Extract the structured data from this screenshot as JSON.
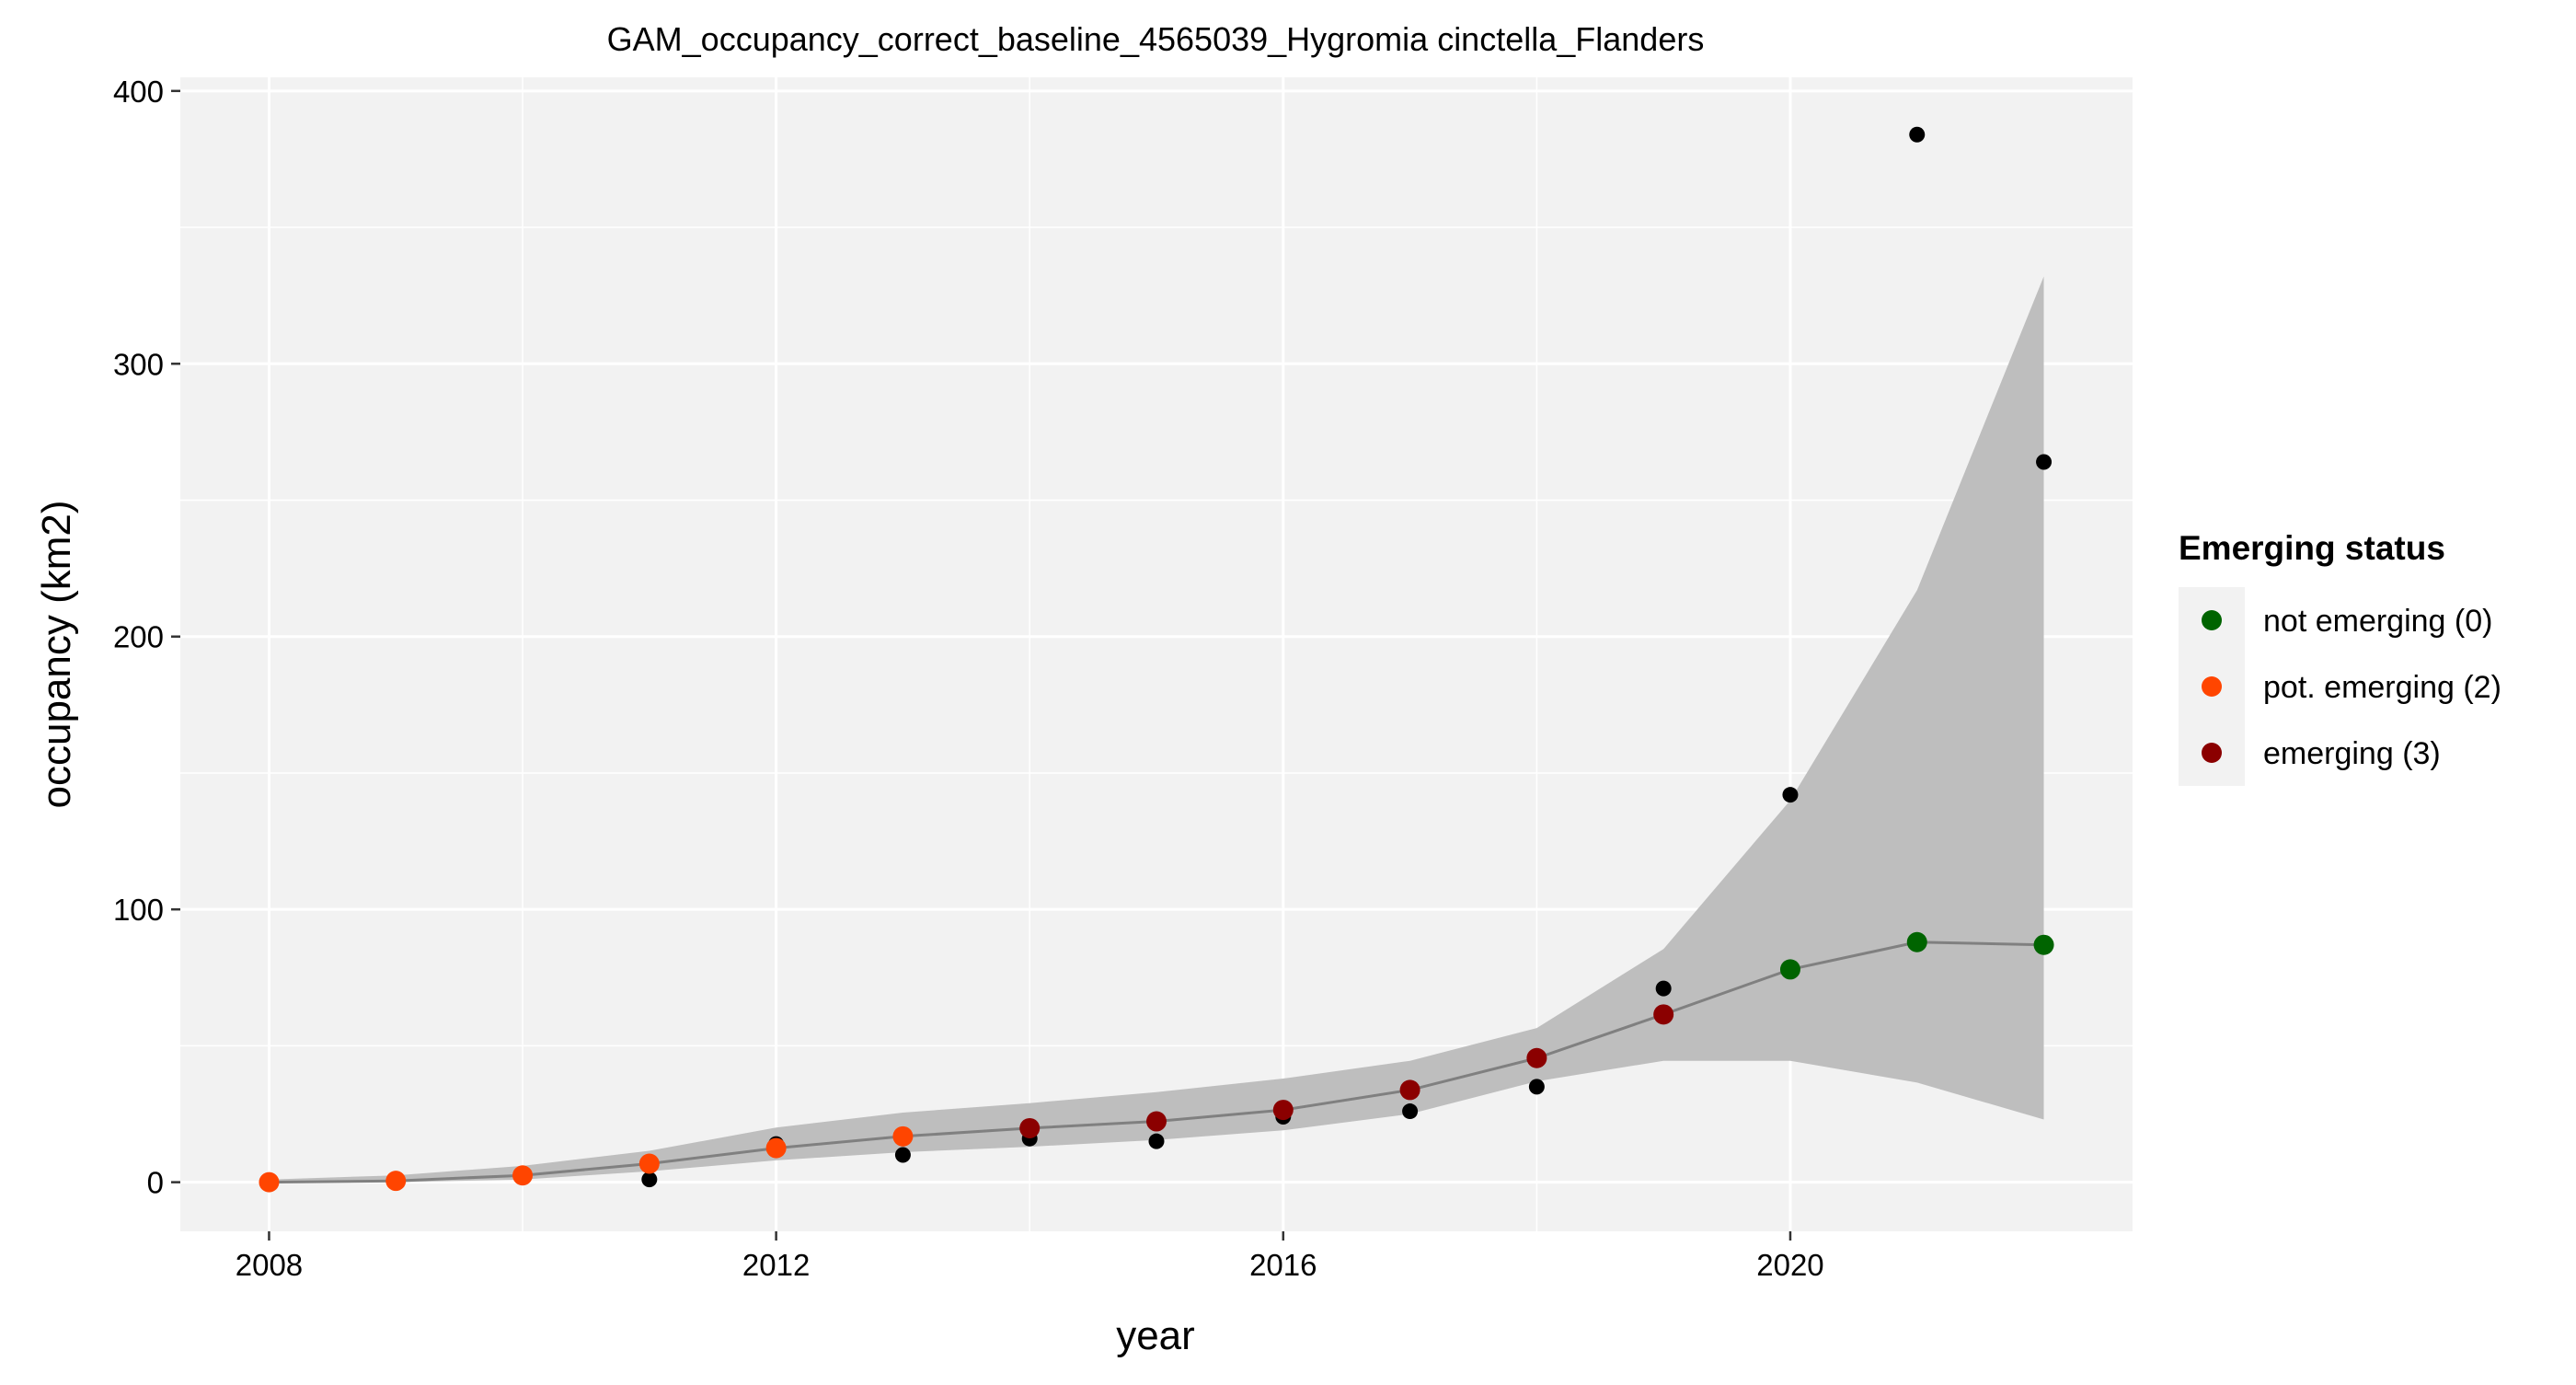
{
  "chart_data": {
    "type": "line",
    "title": "GAM_occupancy_correct_baseline_4565039_Hygromia cinctella_Flanders",
    "xlabel": "year",
    "ylabel": "occupancy (km2)",
    "xlim": [
      2007.3,
      2022.7
    ],
    "ylim": [
      -18,
      405
    ],
    "x_ticks": [
      2008,
      2012,
      2016,
      2020
    ],
    "x_tick_labels": [
      "2008",
      "2012",
      "2016",
      "2020"
    ],
    "y_ticks": [
      0,
      100,
      200,
      300,
      400
    ],
    "y_tick_labels": [
      "0",
      "100",
      "200",
      "300",
      "400"
    ],
    "grid": true,
    "legend": {
      "title": "Emerging status",
      "position": "right",
      "entries": [
        {
          "label": "not emerging (0)",
          "color": "#006400"
        },
        {
          "label": "pot. emerging (2)",
          "color": "#FF4500"
        },
        {
          "label": "emerging (3)",
          "color": "#8B0000"
        }
      ]
    },
    "colors": {
      "panel_background": "#F2F2F2",
      "grid": "#FFFFFF",
      "ribbon": "#BEBEBE",
      "fit_line": "#808080",
      "observed_points": "#000000"
    },
    "observed": {
      "x": [
        2008,
        2009,
        2010,
        2011,
        2012,
        2013,
        2014,
        2015,
        2016,
        2017,
        2018,
        2019,
        2020,
        2021,
        2022
      ],
      "y": [
        0,
        0,
        2,
        1,
        14,
        10,
        16,
        15,
        24,
        26,
        35,
        71,
        142,
        384,
        264
      ]
    },
    "fit": {
      "x": [
        2008,
        2009,
        2010,
        2011,
        2012,
        2013,
        2014,
        2015,
        2016,
        2017,
        2018,
        2019,
        2020,
        2021,
        2022
      ],
      "y": [
        0,
        0.5,
        2.5,
        6.8,
        12.5,
        16.8,
        19.8,
        22.3,
        26.5,
        33.8,
        45.5,
        61.5,
        78,
        88,
        87
      ],
      "lower": [
        0,
        0,
        1,
        4,
        8,
        11,
        13,
        15.5,
        19,
        25,
        37,
        44.5,
        44.5,
        36.5,
        23
      ],
      "upper": [
        1,
        2.5,
        6,
        11.5,
        20,
        25.5,
        29,
        33,
        38,
        44.5,
        56.5,
        85.5,
        140,
        217,
        332
      ],
      "status": [
        "pot. emerging (2)",
        "pot. emerging (2)",
        "pot. emerging (2)",
        "pot. emerging (2)",
        "pot. emerging (2)",
        "pot. emerging (2)",
        "emerging (3)",
        "emerging (3)",
        "emerging (3)",
        "emerging (3)",
        "emerging (3)",
        "emerging (3)",
        "not emerging (0)",
        "not emerging (0)",
        "not emerging (0)"
      ]
    }
  }
}
